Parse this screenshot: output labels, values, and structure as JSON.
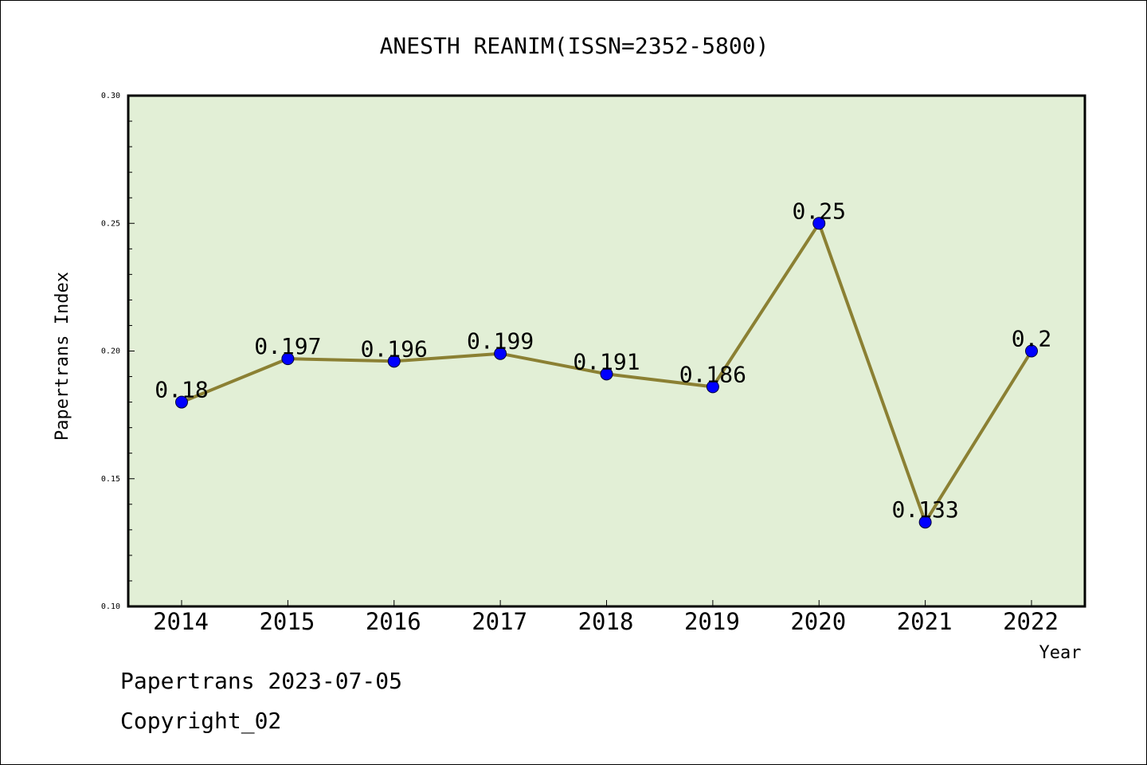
{
  "chart_data": {
    "type": "line",
    "title": "ANESTH REANIM(ISSN=2352-5800)",
    "xlabel": "Year",
    "ylabel": "Papertrans Index",
    "ylim": [
      0.1,
      0.3
    ],
    "yticks": [
      "0.10",
      "0.15",
      "0.20",
      "0.25",
      "0.30"
    ],
    "x": [
      "2014",
      "2015",
      "2016",
      "2017",
      "2018",
      "2019",
      "2020",
      "2021",
      "2022"
    ],
    "series": [
      {
        "values": [
          0.18,
          0.197,
          0.196,
          0.199,
          0.191,
          0.186,
          0.25,
          0.133,
          0.2
        ],
        "labels": [
          "0.18",
          "0.197",
          "0.196",
          "0.199",
          "0.191",
          "0.186",
          "0.25",
          "0.133",
          "0.2"
        ],
        "line_color": "#8b8033",
        "marker_color": "#0000ff"
      }
    ],
    "plot_background": "#e2efd6",
    "grid": false,
    "legend": "none"
  },
  "footer": {
    "line1": "Papertrans 2023-07-05",
    "line2": "Copyright_02"
  }
}
